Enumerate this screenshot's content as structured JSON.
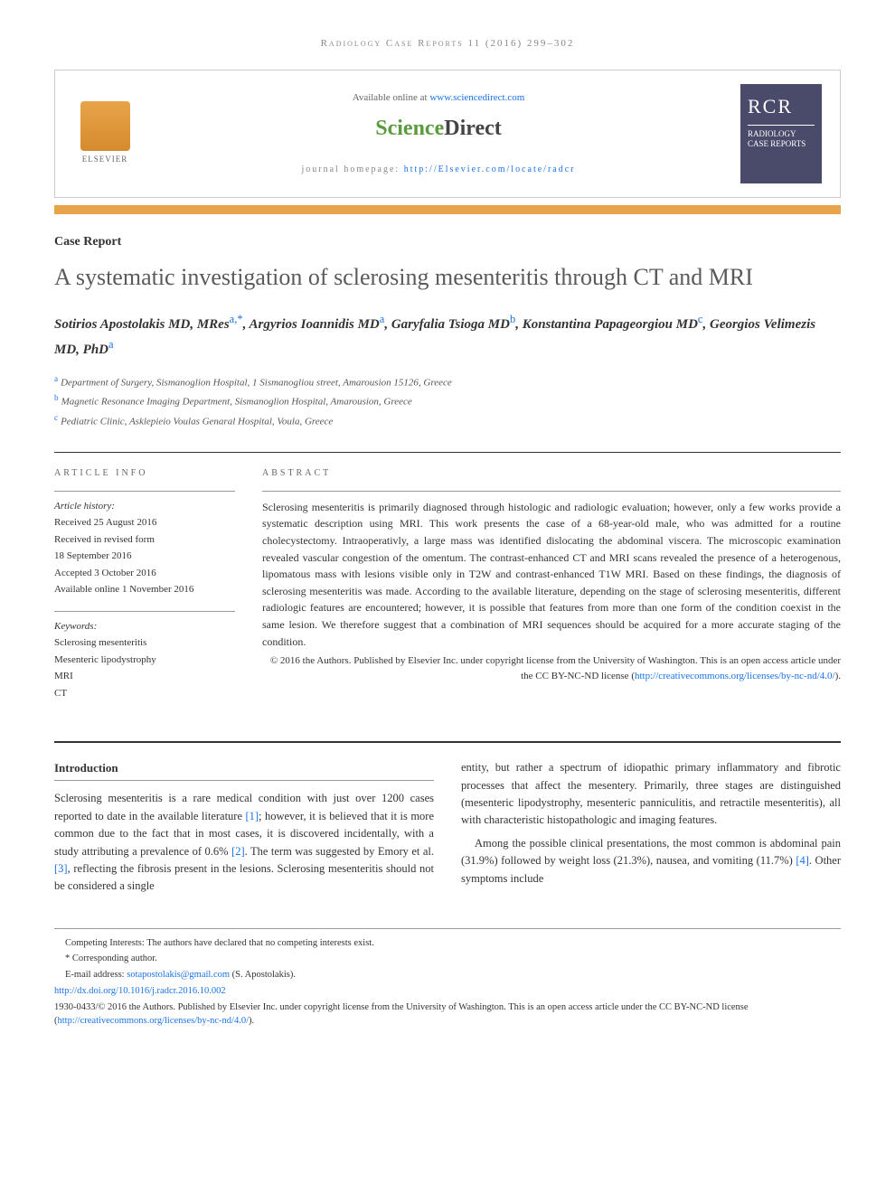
{
  "running_header": "Radiology Case Reports 11 (2016) 299–302",
  "header": {
    "available_text": "Available online at ",
    "available_link": "www.sciencedirect.com",
    "sd_science": "Science",
    "sd_direct": "Direct",
    "homepage_label": "journal homepage: ",
    "homepage_link": "http://Elsevier.com/locate/radcr",
    "elsevier": "ELSEVIER",
    "journal_cover_abbr": "RCR",
    "journal_cover_title": "RADIOLOGY CASE REPORTS"
  },
  "article_type": "Case Report",
  "title": "A systematic investigation of sclerosing mesenteritis through CT and MRI",
  "authors_html_parts": [
    {
      "name": "Sotirios Apostolakis MD, MRes",
      "sup": "a,*"
    },
    {
      "name": "Argyrios Ioannidis MD",
      "sup": "a"
    },
    {
      "name": "Garyfalia Tsioga MD",
      "sup": "b"
    },
    {
      "name": "Konstantina Papageorgiou MD",
      "sup": "c"
    },
    {
      "name": "Georgios Velimezis MD, PhD",
      "sup": "a"
    }
  ],
  "affiliations": [
    {
      "sup": "a",
      "text": "Department of Surgery, Sismanoglion Hospital, 1 Sismanogliou street, Amarousion 15126, Greece"
    },
    {
      "sup": "b",
      "text": "Magnetic Resonance Imaging Department, Sismanoglion Hospital, Amarousion, Greece"
    },
    {
      "sup": "c",
      "text": "Pediatric Clinic, Asklepieio Voulas Genaral Hospital, Voula, Greece"
    }
  ],
  "info": {
    "heading": "ARTICLE INFO",
    "history_label": "Article history:",
    "history": [
      "Received 25 August 2016",
      "Received in revised form",
      "18 September 2016",
      "Accepted 3 October 2016",
      "Available online 1 November 2016"
    ],
    "keywords_label": "Keywords:",
    "keywords": [
      "Sclerosing mesenteritis",
      "Mesenteric lipodystrophy",
      "MRI",
      "CT"
    ]
  },
  "abstract": {
    "heading": "ABSTRACT",
    "text": "Sclerosing mesenteritis is primarily diagnosed through histologic and radiologic evaluation; however, only a few works provide a systematic description using MRI. This work presents the case of a 68-year-old male, who was admitted for a routine cholecystectomy. Intraoperativly, a large mass was identified dislocating the abdominal viscera. The microscopic examination revealed vascular congestion of the omentum. The contrast-enhanced CT and MRI scans revealed the presence of a heterogenous, lipomatous mass with lesions visible only in T2W and contrast-enhanced T1W MRI. Based on these findings, the diagnosis of sclerosing mesenteritis was made. According to the available literature, depending on the stage of sclerosing mesenteritis, different radiologic features are encountered; however, it is possible that features from more than one form of the condition coexist in the same lesion. We therefore suggest that a combination of MRI sequences should be acquired for a more accurate staging of the condition.",
    "copyright": "© 2016 the Authors. Published by Elsevier Inc. under copyright license from the University of Washington. This is an open access article under the CC BY-NC-ND license (",
    "cc_link": "http://creativecommons.org/licenses/by-nc-nd/4.0/",
    "cc_close": ")."
  },
  "body": {
    "section_heading": "Introduction",
    "col1_p1a": "Sclerosing mesenteritis is a rare medical condition with just over 1200 cases reported to date in the available literature ",
    "col1_ref1": "[1]",
    "col1_p1b": "; however, it is believed that it is more common due to the fact that in most cases, it is discovered incidentally, with a study attributing a prevalence of 0.6% ",
    "col1_ref2": "[2]",
    "col1_p1c": ". The term was suggested by Emory et al. ",
    "col1_ref3": "[3]",
    "col1_p1d": ", reflecting the fibrosis present in the lesions. Sclerosing mesenteritis should not be considered a single",
    "col2_p1": "entity, but rather a spectrum of idiopathic primary inflammatory and fibrotic processes that affect the mesentery. Primarily, three stages are distinguished (mesenteric lipodystrophy, mesenteric panniculitis, and retractile mesenteritis), all with characteristic histopathologic and imaging features.",
    "col2_p2a": "Among the possible clinical presentations, the most common is abdominal pain (31.9%) followed by weight loss (21.3%), nausea, and vomiting (11.7%) ",
    "col2_ref4": "[4]",
    "col2_p2b": ". Other symptoms include"
  },
  "footnotes": {
    "competing": "Competing Interests: The authors have declared that no competing interests exist.",
    "corresponding": "* Corresponding author.",
    "email_label": "E-mail address: ",
    "email": "sotapostolakis@gmail.com",
    "email_suffix": " (S. Apostolakis).",
    "doi": "http://dx.doi.org/10.1016/j.radcr.2016.10.002",
    "issn_line": "1930-0433/© 2016 the Authors. Published by Elsevier Inc. under copyright license from the University of Washington. This is an open access article under the CC BY-NC-ND license (",
    "cc_link": "http://creativecommons.org/licenses/by-nc-nd/4.0/",
    "cc_close": ")."
  },
  "colors": {
    "orange": "#e8a44a",
    "link": "#1a73e8",
    "cover_bg": "#4a4a6a"
  }
}
